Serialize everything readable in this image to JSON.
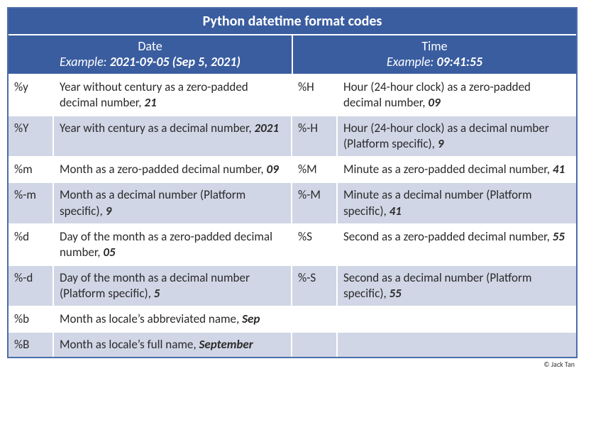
{
  "title": "Python datetime format codes",
  "colors": {
    "title_bg": "#3a5da0",
    "title_fg": "#ffffff",
    "header_bg": "#3a5da0",
    "header_fg": "#ffffff",
    "row_odd_bg": "#ffffff",
    "row_even_bg": "#d1d6e6",
    "border_color": "#ffffff",
    "text_color": "#2a2a2a"
  },
  "columns": {
    "date": {
      "title": "Date",
      "example_label": "Example: ",
      "example_value": "2021-09-05",
      "example_extra": " (Sep 5, 2021)"
    },
    "time": {
      "title": "Time",
      "example_label": "Example: ",
      "example_value": "09:41:55",
      "example_extra": ""
    }
  },
  "rows": [
    {
      "date_code": "%y",
      "date_desc": "Year without century as a zero-padded decimal number, ",
      "date_example": "21",
      "time_code": "%H",
      "time_desc": "Hour (24-hour clock) as a zero-padded decimal number, ",
      "time_example": "09"
    },
    {
      "date_code": "%Y",
      "date_desc": "Year with century as a decimal number, ",
      "date_example": "2021",
      "time_code": "%-H",
      "time_desc": "Hour (24-hour clock) as a decimal number (Platform specific), ",
      "time_example": "9"
    },
    {
      "date_code": "%m",
      "date_desc": "Month as a zero-padded decimal number, ",
      "date_example": "09",
      "time_code": "%M",
      "time_desc": "Minute as a zero-padded decimal number, ",
      "time_example": "41"
    },
    {
      "date_code": "%-m",
      "date_desc": "Month as a decimal number (Platform specific), ",
      "date_example": "9",
      "time_code": "%-M",
      "time_desc": "Minute as a decimal number (Platform specific), ",
      "time_example": "41"
    },
    {
      "date_code": "%d",
      "date_desc": "Day of the month as a zero-padded decimal number, ",
      "date_example": "05",
      "time_code": "%S",
      "time_desc": "Second as a zero-padded decimal number, ",
      "time_example": "55"
    },
    {
      "date_code": "%-d",
      "date_desc": "Day of the month as a decimal number (Platform specific), ",
      "date_example": "5",
      "time_code": "%-S",
      "time_desc": "Second as a decimal number (Platform specific), ",
      "time_example": "55"
    },
    {
      "date_code": "%b",
      "date_desc": "Month as locale’s abbreviated name, ",
      "date_example": "Sep",
      "time_code": "",
      "time_desc": "",
      "time_example": ""
    },
    {
      "date_code": "%B",
      "date_desc": "Month as locale’s full name, ",
      "date_example": "September",
      "time_code": "",
      "time_desc": "",
      "time_example": ""
    }
  ],
  "credit": "© Jack Tan"
}
